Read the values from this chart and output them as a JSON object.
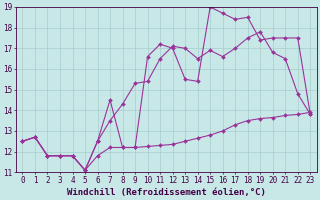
{
  "xlabel": "Windchill (Refroidissement éolien,°C)",
  "background_color": "#c8e8e8",
  "grid_color": "#a8cccc",
  "line_color": "#993399",
  "xlim": [
    -0.5,
    23.5
  ],
  "ylim": [
    11,
    19
  ],
  "xticks": [
    0,
    1,
    2,
    3,
    4,
    5,
    6,
    7,
    8,
    9,
    10,
    11,
    12,
    13,
    14,
    15,
    16,
    17,
    18,
    19,
    20,
    21,
    22,
    23
  ],
  "yticks": [
    11,
    12,
    13,
    14,
    15,
    16,
    17,
    18,
    19
  ],
  "series": [
    {
      "x": [
        0,
        1,
        2,
        3,
        4,
        5,
        6,
        7,
        8,
        9,
        10,
        11,
        12,
        13,
        14,
        15,
        16,
        17,
        18,
        19,
        20,
        21,
        22,
        23
      ],
      "y": [
        12.5,
        12.7,
        11.8,
        11.8,
        11.8,
        11.1,
        11.8,
        12.2,
        12.2,
        12.2,
        12.25,
        12.3,
        12.35,
        12.5,
        12.65,
        12.8,
        13.0,
        13.3,
        13.5,
        13.6,
        13.65,
        13.75,
        13.8,
        13.9
      ]
    },
    {
      "x": [
        0,
        1,
        2,
        3,
        4,
        5,
        6,
        7,
        8,
        9,
        10,
        11,
        12,
        13,
        14,
        15,
        16,
        17,
        18,
        19,
        20,
        21,
        22,
        23
      ],
      "y": [
        12.5,
        12.7,
        11.8,
        11.8,
        11.8,
        11.1,
        12.5,
        13.5,
        14.3,
        15.3,
        15.4,
        16.5,
        17.1,
        17.0,
        16.5,
        16.9,
        16.6,
        17.0,
        17.5,
        17.8,
        16.8,
        16.5,
        14.8,
        13.8
      ]
    },
    {
      "x": [
        0,
        1,
        2,
        3,
        4,
        5,
        6,
        7,
        8,
        9,
        10,
        11,
        12,
        13,
        14,
        15,
        16,
        17,
        18,
        19,
        20,
        21,
        22,
        23
      ],
      "y": [
        12.5,
        12.7,
        11.8,
        11.8,
        11.8,
        11.1,
        12.5,
        14.5,
        12.2,
        12.2,
        16.6,
        17.2,
        17.0,
        15.5,
        15.4,
        19.0,
        18.7,
        18.4,
        18.5,
        17.4,
        17.5,
        17.5,
        17.5,
        13.8
      ]
    }
  ],
  "xlabel_fontsize": 6.5,
  "tick_fontsize": 5.5,
  "marker_size": 2.0,
  "line_width": 0.8
}
